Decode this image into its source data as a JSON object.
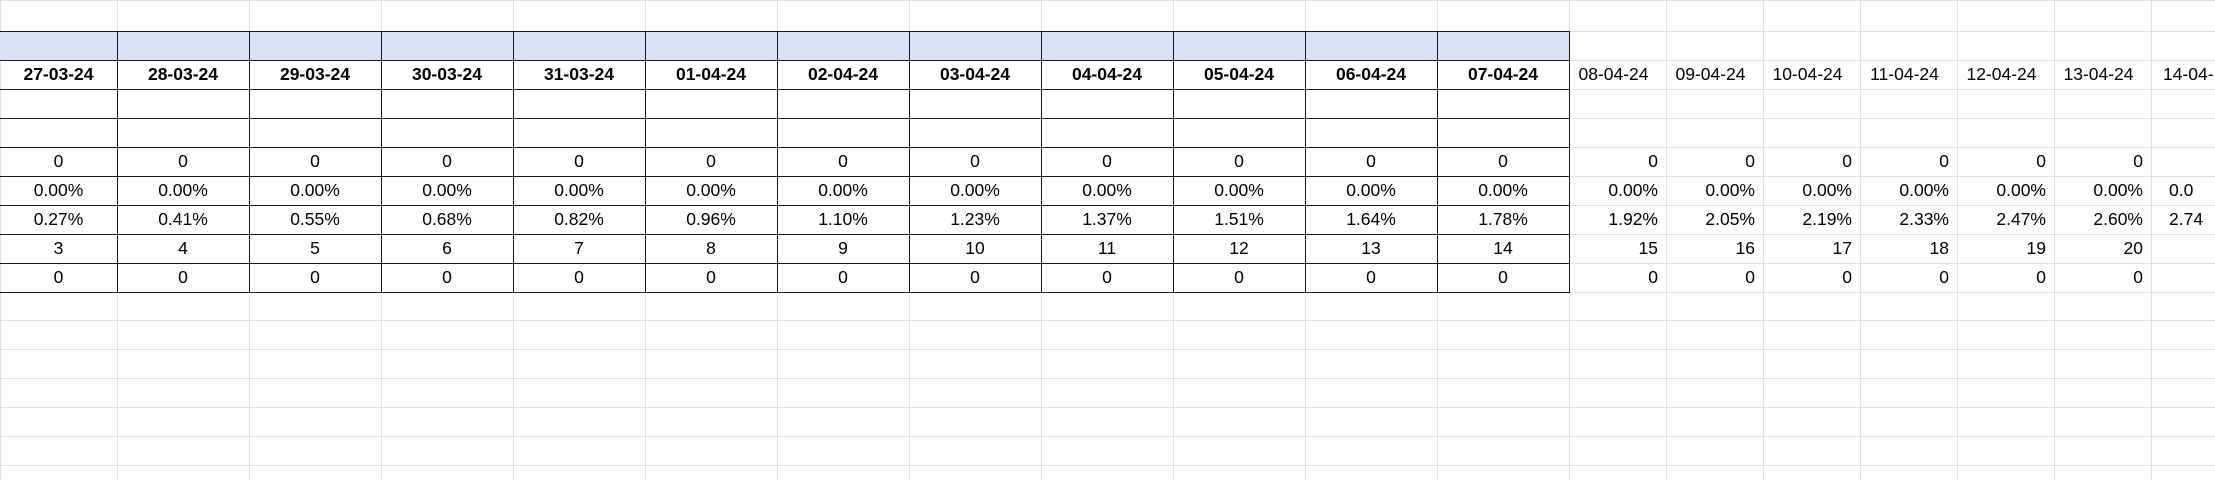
{
  "sheet": {
    "dates": [
      "27-03-24",
      "28-03-24",
      "29-03-24",
      "30-03-24",
      "31-03-24",
      "01-04-24",
      "02-04-24",
      "03-04-24",
      "04-04-24",
      "05-04-24",
      "06-04-24",
      "07-04-24",
      "08-04-24",
      "09-04-24",
      "10-04-24",
      "11-04-24",
      "12-04-24",
      "13-04-24",
      "14-04-"
    ],
    "row_zero_a": [
      "0",
      "0",
      "0",
      "0",
      "0",
      "0",
      "0",
      "0",
      "0",
      "0",
      "0",
      "0",
      "0",
      "0",
      "0",
      "0",
      "0",
      "0",
      ""
    ],
    "row_pct_a": [
      "0.00%",
      "0.00%",
      "0.00%",
      "0.00%",
      "0.00%",
      "0.00%",
      "0.00%",
      "0.00%",
      "0.00%",
      "0.00%",
      "0.00%",
      "0.00%",
      "0.00%",
      "0.00%",
      "0.00%",
      "0.00%",
      "0.00%",
      "0.00%",
      "0.0"
    ],
    "row_pct_b": [
      "0.27%",
      "0.41%",
      "0.55%",
      "0.68%",
      "0.82%",
      "0.96%",
      "1.10%",
      "1.23%",
      "1.37%",
      "1.51%",
      "1.64%",
      "1.78%",
      "1.92%",
      "2.05%",
      "2.19%",
      "2.33%",
      "2.47%",
      "2.60%",
      "2.74"
    ],
    "row_count": [
      "3",
      "4",
      "5",
      "6",
      "7",
      "8",
      "9",
      "10",
      "11",
      "12",
      "13",
      "14",
      "15",
      "16",
      "17",
      "18",
      "19",
      "20",
      ""
    ],
    "row_zero_b": [
      "0",
      "0",
      "0",
      "0",
      "0",
      "0",
      "0",
      "0",
      "0",
      "0",
      "0",
      "0",
      "0",
      "0",
      "0",
      "0",
      "0",
      "0",
      ""
    ]
  }
}
